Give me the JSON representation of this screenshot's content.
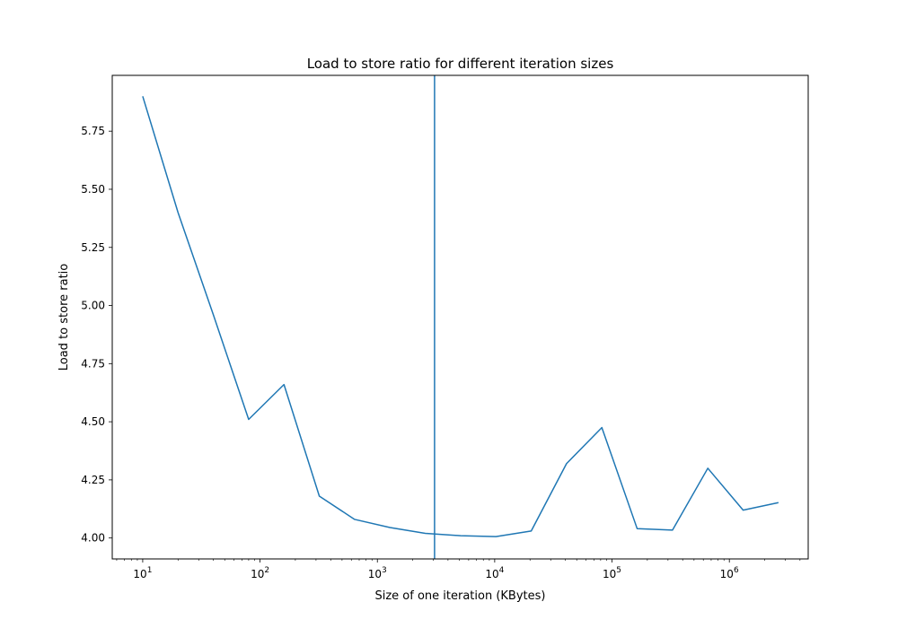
{
  "chart_data": {
    "type": "line",
    "title": "Load to store ratio for different iteration sizes",
    "xlabel": "Size of one iteration (KBytes)",
    "ylabel": "Load to store ratio",
    "xscale": "log",
    "xlim": [
      5.5,
      4700000
    ],
    "ylim": [
      3.91,
      5.99
    ],
    "grid": false,
    "legend": "none",
    "line_color": "#1f77b4",
    "x_ticks": [
      {
        "value": 10,
        "base": "10",
        "exp": "1"
      },
      {
        "value": 100,
        "base": "10",
        "exp": "2"
      },
      {
        "value": 1000,
        "base": "10",
        "exp": "3"
      },
      {
        "value": 10000,
        "base": "10",
        "exp": "4"
      },
      {
        "value": 100000,
        "base": "10",
        "exp": "5"
      },
      {
        "value": 1000000,
        "base": "10",
        "exp": "6"
      }
    ],
    "y_ticks": [
      {
        "value": 4.0,
        "label": "4.00"
      },
      {
        "value": 4.25,
        "label": "4.25"
      },
      {
        "value": 4.5,
        "label": "4.50"
      },
      {
        "value": 4.75,
        "label": "4.75"
      },
      {
        "value": 5.0,
        "label": "5.00"
      },
      {
        "value": 5.25,
        "label": "5.25"
      },
      {
        "value": 5.5,
        "label": "5.50"
      },
      {
        "value": 5.75,
        "label": "5.75"
      }
    ],
    "vline_x": 3072,
    "series": [
      {
        "x": [
          10,
          20,
          40,
          80,
          160,
          320,
          640,
          1280,
          2560,
          5120,
          10240,
          20480,
          40960,
          81920,
          163840,
          327680,
          655360,
          1310720,
          2621440
        ],
        "values": [
          5.9,
          5.4,
          4.96,
          4.51,
          4.66,
          4.18,
          4.08,
          4.045,
          4.02,
          4.01,
          4.006,
          4.03,
          4.32,
          4.475,
          4.04,
          4.034,
          4.3,
          4.12,
          4.152
        ]
      }
    ]
  }
}
